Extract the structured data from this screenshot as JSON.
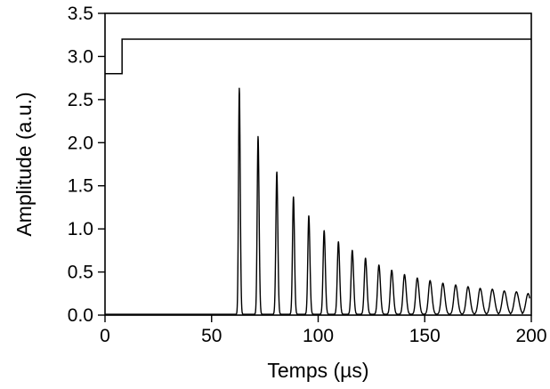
{
  "chart_data": {
    "type": "line",
    "xlabel": "Temps (µs)",
    "ylabel": "Amplitude (a.u.)",
    "xlim": [
      0,
      200
    ],
    "ylim": [
      0,
      3.5
    ],
    "xticks": [
      0,
      50,
      100,
      150,
      200
    ],
    "yticks": [
      0.0,
      0.5,
      1.0,
      1.5,
      2.0,
      2.5,
      3.0,
      3.5
    ],
    "xtick_labels": [
      "0",
      "50",
      "100",
      "150",
      "200"
    ],
    "ytick_labels": [
      "0.0",
      "0.5",
      "1.0",
      "1.5",
      "2.0",
      "2.5",
      "3.0",
      "3.5"
    ],
    "grid": false,
    "line_color": "#000000",
    "series": [
      {
        "kind": "step",
        "x": [
          0,
          8,
          8,
          200
        ],
        "y": [
          2.8,
          2.8,
          3.2,
          3.2
        ]
      },
      {
        "kind": "oscillation",
        "baseline": 0.01,
        "onset": 59,
        "peaks": [
          {
            "x": 63.0,
            "y": 2.63
          },
          {
            "x": 71.8,
            "y": 2.07
          },
          {
            "x": 80.6,
            "y": 1.66
          },
          {
            "x": 88.4,
            "y": 1.37
          },
          {
            "x": 95.6,
            "y": 1.15
          },
          {
            "x": 102.8,
            "y": 0.98
          },
          {
            "x": 109.5,
            "y": 0.85
          },
          {
            "x": 116.0,
            "y": 0.75
          },
          {
            "x": 122.2,
            "y": 0.66
          },
          {
            "x": 128.5,
            "y": 0.58
          },
          {
            "x": 134.5,
            "y": 0.52
          },
          {
            "x": 140.5,
            "y": 0.47
          },
          {
            "x": 146.5,
            "y": 0.43
          },
          {
            "x": 152.5,
            "y": 0.4
          },
          {
            "x": 158.5,
            "y": 0.37
          },
          {
            "x": 164.5,
            "y": 0.35
          },
          {
            "x": 170.3,
            "y": 0.33
          },
          {
            "x": 176.0,
            "y": 0.31
          },
          {
            "x": 181.7,
            "y": 0.3
          },
          {
            "x": 187.3,
            "y": 0.28
          },
          {
            "x": 193.0,
            "y": 0.27
          },
          {
            "x": 198.5,
            "y": 0.25
          }
        ]
      }
    ]
  }
}
